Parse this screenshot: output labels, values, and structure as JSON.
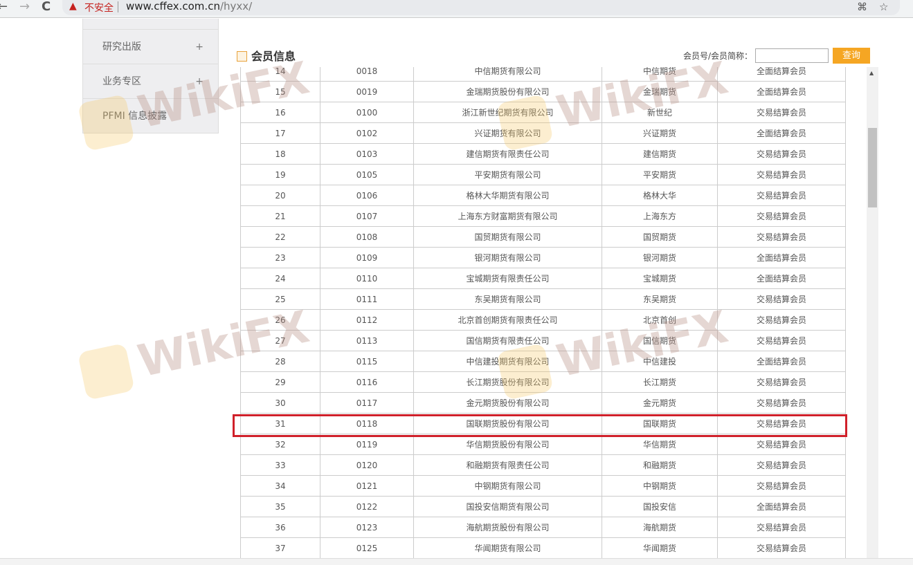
{
  "browser": {
    "back": "←",
    "forward": "→",
    "reload": "C",
    "security_label": "不安全",
    "url_host": "www.cffex.com.cn",
    "url_path": "/hyxx/"
  },
  "sidebar": {
    "items": [
      {
        "label": "研究出版",
        "expand": "+"
      },
      {
        "label": "业务专区",
        "expand": "+"
      },
      {
        "label": "PFMI 信息披露"
      }
    ]
  },
  "main": {
    "title": "会员信息",
    "search_label": "会员号/会员简称：",
    "search_value": "",
    "search_button": "查询"
  },
  "table": {
    "highlight_row": "31",
    "rows": [
      [
        "14",
        "0018",
        "中信期货有限公司",
        "中信期货",
        "全面结算会员"
      ],
      [
        "15",
        "0019",
        "金瑞期货股份有限公司",
        "金瑞期货",
        "全面结算会员"
      ],
      [
        "16",
        "0100",
        "浙江新世纪期货有限公司",
        "新世纪",
        "交易结算会员"
      ],
      [
        "17",
        "0102",
        "兴证期货有限公司",
        "兴证期货",
        "全面结算会员"
      ],
      [
        "18",
        "0103",
        "建信期货有限责任公司",
        "建信期货",
        "交易结算会员"
      ],
      [
        "19",
        "0105",
        "平安期货有限公司",
        "平安期货",
        "交易结算会员"
      ],
      [
        "20",
        "0106",
        "格林大华期货有限公司",
        "格林大华",
        "交易结算会员"
      ],
      [
        "21",
        "0107",
        "上海东方财富期货有限公司",
        "上海东方",
        "交易结算会员"
      ],
      [
        "22",
        "0108",
        "国贸期货有限公司",
        "国贸期货",
        "交易结算会员"
      ],
      [
        "23",
        "0109",
        "银河期货有限公司",
        "银河期货",
        "全面结算会员"
      ],
      [
        "24",
        "0110",
        "宝城期货有限责任公司",
        "宝城期货",
        "全面结算会员"
      ],
      [
        "25",
        "0111",
        "东吴期货有限公司",
        "东吴期货",
        "交易结算会员"
      ],
      [
        "26",
        "0112",
        "北京首创期货有限责任公司",
        "北京首创",
        "交易结算会员"
      ],
      [
        "27",
        "0113",
        "国信期货有限责任公司",
        "国信期货",
        "交易结算会员"
      ],
      [
        "28",
        "0115",
        "中信建投期货有限公司",
        "中信建投",
        "全面结算会员"
      ],
      [
        "29",
        "0116",
        "长江期货股份有限公司",
        "长江期货",
        "交易结算会员"
      ],
      [
        "30",
        "0117",
        "金元期货股份有限公司",
        "金元期货",
        "交易结算会员"
      ],
      [
        "31",
        "0118",
        "国联期货股份有限公司",
        "国联期货",
        "交易结算会员"
      ],
      [
        "32",
        "0119",
        "华信期货股份有限公司",
        "华信期货",
        "交易结算会员"
      ],
      [
        "33",
        "0120",
        "和融期货有限责任公司",
        "和融期货",
        "交易结算会员"
      ],
      [
        "34",
        "0121",
        "中钢期货有限公司",
        "中钢期货",
        "交易结算会员"
      ],
      [
        "35",
        "0122",
        "国投安信期货有限公司",
        "国投安信",
        "全面结算会员"
      ],
      [
        "36",
        "0123",
        "海航期货股份有限公司",
        "海航期货",
        "交易结算会员"
      ],
      [
        "37",
        "0125",
        "华闻期货有限公司",
        "华闻期货",
        "交易结算会员"
      ]
    ]
  },
  "watermark": "WikiFX",
  "colors": {
    "accent": "#f5a623",
    "highlight": "#d0202a"
  }
}
